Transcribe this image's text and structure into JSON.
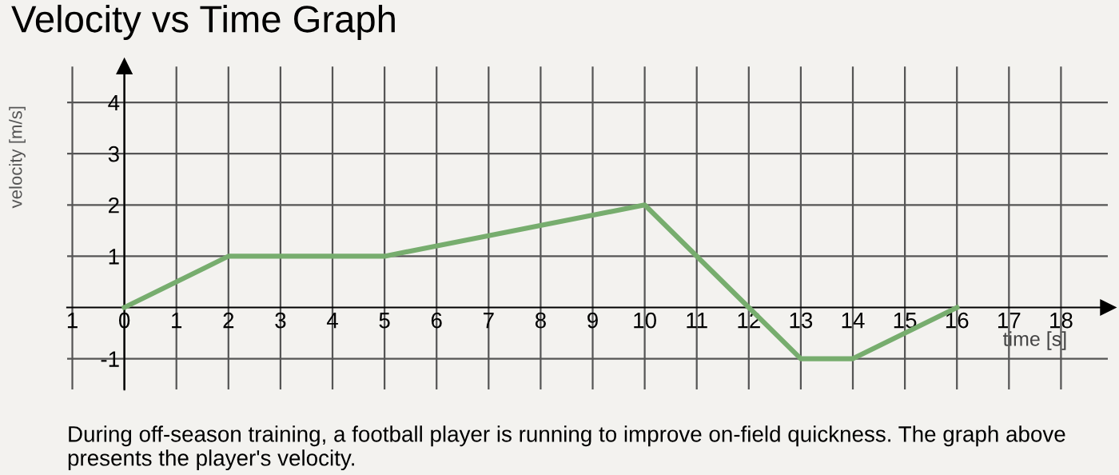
{
  "chart_data": {
    "type": "line",
    "title": "Velocity vs Time Graph",
    "xlabel": "time [s]",
    "ylabel": "velocity [m/s]",
    "x": [
      0,
      2,
      5,
      10,
      12,
      13,
      14,
      16
    ],
    "series": [
      {
        "color": "#77ad6e",
        "values": [
          0,
          1,
          1,
          2,
          0,
          -1,
          -1,
          0
        ]
      }
    ],
    "xlim": [
      -1.1,
      18.9
    ],
    "ylim": [
      -1.6,
      4.7
    ],
    "xticks": [
      {
        "value": -1,
        "label": "1"
      },
      0,
      1,
      2,
      3,
      4,
      5,
      6,
      7,
      8,
      9,
      10,
      11,
      12,
      13,
      14,
      15,
      16,
      17,
      18
    ],
    "yticks": [
      -1,
      1,
      2,
      3,
      4
    ],
    "grid": true,
    "marker": "none",
    "line_style": "solid",
    "legend": false,
    "annotations": [
      "During off-season training, a football player is running to improve on-field quickness. The graph above presents the player's velocity."
    ]
  }
}
